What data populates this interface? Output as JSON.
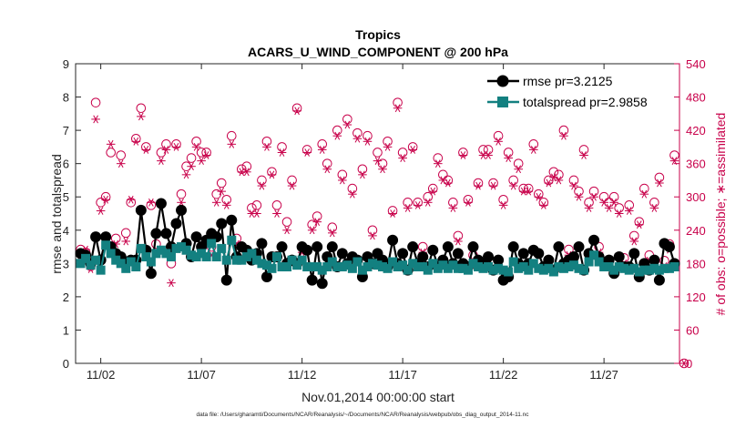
{
  "chart_data": {
    "type": "line",
    "title": "Tropics",
    "subtitle": "ACARS_U_WIND_COMPONENT @ 200 hPa",
    "xlabel": "Nov.01,2014 00:00:00 start",
    "ylabel": "rmse and totalspread",
    "ylabel_right": "# of obs: o=possible; ∗=assimilated",
    "xlim": [
      0.75,
      30.75
    ],
    "ylim": [
      0,
      9
    ],
    "ylim_right": [
      0,
      540
    ],
    "x_ticks": [
      2,
      7,
      12,
      17,
      22,
      27
    ],
    "x_tick_labels": [
      "11/02",
      "11/07",
      "11/12",
      "11/17",
      "11/22",
      "11/27"
    ],
    "y_ticks": [
      0,
      1,
      2,
      3,
      4,
      5,
      6,
      7,
      8,
      9
    ],
    "y_ticks_right": [
      0,
      60,
      120,
      180,
      240,
      300,
      360,
      420,
      480,
      540
    ],
    "grid": false,
    "legend_position": "top-right",
    "x": [
      1.0,
      1.25,
      1.5,
      1.75,
      2.0,
      2.25,
      2.5,
      2.75,
      3.0,
      3.25,
      3.5,
      3.75,
      4.0,
      4.25,
      4.5,
      4.75,
      5.0,
      5.25,
      5.5,
      5.75,
      6.0,
      6.25,
      6.5,
      6.75,
      7.0,
      7.25,
      7.5,
      7.75,
      8.0,
      8.25,
      8.5,
      8.75,
      9.0,
      9.25,
      9.5,
      9.75,
      10.0,
      10.25,
      10.5,
      10.75,
      11.0,
      11.25,
      11.5,
      11.75,
      12.0,
      12.25,
      12.5,
      12.75,
      13.0,
      13.25,
      13.5,
      13.75,
      14.0,
      14.25,
      14.5,
      14.75,
      15.0,
      15.25,
      15.5,
      15.75,
      16.0,
      16.25,
      16.5,
      16.75,
      17.0,
      17.25,
      17.5,
      17.75,
      18.0,
      18.25,
      18.5,
      18.75,
      19.0,
      19.25,
      19.5,
      19.75,
      20.0,
      20.25,
      20.5,
      20.75,
      21.0,
      21.25,
      21.5,
      21.75,
      22.0,
      22.25,
      22.5,
      22.75,
      23.0,
      23.25,
      23.5,
      23.75,
      24.0,
      24.25,
      24.5,
      24.75,
      25.0,
      25.25,
      25.5,
      25.75,
      26.0,
      26.25,
      26.5,
      26.75,
      27.0,
      27.25,
      27.5,
      27.75,
      28.0,
      28.25,
      28.5,
      28.75,
      29.0,
      29.25,
      29.5,
      29.75,
      30.0,
      30.25,
      30.5
    ],
    "series": [
      {
        "name": "rmse pr=3.2125",
        "axis": "left",
        "color": "#000000",
        "marker": "circle",
        "values": [
          3.3,
          3.25,
          3.0,
          3.8,
          3.1,
          3.8,
          3.5,
          3.3,
          3.2,
          3.05,
          3.1,
          3.1,
          4.6,
          3.4,
          2.7,
          3.9,
          4.8,
          3.9,
          3.5,
          4.2,
          4.6,
          3.6,
          3.2,
          3.8,
          3.5,
          3.7,
          3.9,
          3.8,
          4.2,
          2.5,
          4.3,
          3.2,
          3.5,
          3.4,
          3.1,
          3.3,
          3.6,
          2.6,
          3.2,
          3.2,
          3.5,
          3.0,
          3.1,
          3.0,
          3.5,
          3.4,
          2.5,
          3.5,
          2.4,
          3.2,
          3.5,
          2.9,
          3.3,
          3.0,
          3.2,
          3.1,
          2.6,
          3.2,
          3.0,
          3.3,
          3.1,
          2.9,
          3.7,
          3.0,
          3.3,
          2.8,
          3.5,
          3.0,
          3.2,
          2.9,
          3.4,
          2.9,
          3.1,
          3.5,
          3.0,
          3.3,
          3.0,
          2.9,
          3.5,
          3.1,
          3.0,
          3.2,
          2.8,
          3.1,
          2.5,
          2.6,
          3.5,
          3.0,
          3.3,
          3.0,
          3.4,
          3.3,
          2.9,
          3.1,
          2.8,
          3.5,
          3.0,
          3.1,
          3.2,
          3.5,
          2.8,
          3.3,
          3.7,
          3.2,
          3.0,
          3.1,
          2.7,
          3.2,
          2.9,
          2.9,
          3.3,
          2.6,
          3.0,
          2.8,
          3.1,
          2.5,
          3.6,
          3.5,
          3.0
        ]
      },
      {
        "name": "totalspread pr=2.9858",
        "axis": "left",
        "color": "#138080",
        "marker": "square",
        "values": [
          3.0,
          3.15,
          2.95,
          3.1,
          2.8,
          3.55,
          3.3,
          3.1,
          3.0,
          2.85,
          3.05,
          2.9,
          3.45,
          3.2,
          3.05,
          3.3,
          3.4,
          3.3,
          3.2,
          3.45,
          3.5,
          3.4,
          3.25,
          3.2,
          3.3,
          3.2,
          3.6,
          3.2,
          3.45,
          3.1,
          3.7,
          3.1,
          3.1,
          3.2,
          3.3,
          3.1,
          3.0,
          2.95,
          2.85,
          3.2,
          2.9,
          2.9,
          3.1,
          2.95,
          3.1,
          2.9,
          2.9,
          2.9,
          2.8,
          2.9,
          3.05,
          2.9,
          2.9,
          2.95,
          2.85,
          3.05,
          2.8,
          2.9,
          3.0,
          2.95,
          2.9,
          2.85,
          3.05,
          2.9,
          2.95,
          2.8,
          3.0,
          2.9,
          2.9,
          2.8,
          3.0,
          2.85,
          2.95,
          2.85,
          2.95,
          2.85,
          2.85,
          2.8,
          3.0,
          2.9,
          2.85,
          2.9,
          2.8,
          2.85,
          2.8,
          2.75,
          3.05,
          2.85,
          2.9,
          2.8,
          3.0,
          2.85,
          2.8,
          2.85,
          2.75,
          2.9,
          2.85,
          2.9,
          2.95,
          2.85,
          2.8,
          3.05,
          3.25,
          3.05,
          2.9,
          2.9,
          2.8,
          2.9,
          2.85,
          2.8,
          2.85,
          2.75,
          2.8,
          2.8,
          2.85,
          2.8,
          2.85,
          2.85,
          2.9
        ]
      },
      {
        "name": "# of obs possible",
        "axis": "right",
        "color": "#c8004a",
        "marker": "open-circle",
        "values": [
          205,
          200,
          175,
          470,
          290,
          300,
          380,
          225,
          375,
          235,
          290,
          405,
          460,
          390,
          285,
          215,
          380,
          395,
          180,
          395,
          305,
          355,
          370,
          400,
          380,
          380,
          210,
          305,
          325,
          295,
          410,
          225,
          350,
          355,
          280,
          285,
          330,
          400,
          345,
          285,
          390,
          255,
          330,
          460,
          210,
          385,
          250,
          265,
          395,
          360,
          245,
          420,
          340,
          440,
          315,
          415,
          350,
          410,
          240,
          380,
          360,
          400,
          275,
          470,
          380,
          290,
          390,
          290,
          210,
          300,
          315,
          370,
          340,
          330,
          290,
          230,
          380,
          295,
          195,
          325,
          385,
          385,
          325,
          410,
          295,
          380,
          330,
          360,
          315,
          315,
          395,
          305,
          290,
          330,
          345,
          340,
          420,
          205,
          330,
          310,
          385,
          290,
          310,
          210,
          300,
          290,
          300,
          280,
          190,
          285,
          230,
          255,
          315,
          195,
          290,
          335,
          185,
          215,
          375
        ]
      },
      {
        "name": "# of obs assimilated",
        "axis": "right",
        "color": "#c8004a",
        "marker": "asterisk",
        "values": [
          195,
          205,
          170,
          440,
          275,
          295,
          395,
          215,
          360,
          220,
          295,
          400,
          445,
          385,
          290,
          200,
          365,
          385,
          145,
          390,
          290,
          340,
          355,
          390,
          365,
          375,
          195,
          290,
          310,
          285,
          395,
          215,
          345,
          345,
          270,
          270,
          320,
          390,
          340,
          270,
          380,
          240,
          320,
          455,
          200,
          380,
          240,
          255,
          385,
          350,
          235,
          410,
          330,
          430,
          305,
          405,
          340,
          400,
          230,
          365,
          350,
          390,
          270,
          460,
          370,
          280,
          385,
          285,
          200,
          290,
          310,
          360,
          330,
          325,
          280,
          220,
          375,
          290,
          185,
          320,
          375,
          375,
          320,
          400,
          285,
          370,
          320,
          350,
          310,
          310,
          385,
          300,
          285,
          325,
          335,
          330,
          410,
          195,
          320,
          300,
          375,
          280,
          300,
          200,
          290,
          280,
          290,
          270,
          180,
          275,
          220,
          250,
          305,
          185,
          280,
          325,
          175,
          205,
          365
        ]
      }
    ],
    "extra_points_right": [
      {
        "x": 31.0,
        "possible": 0,
        "assimilated": 0
      }
    ]
  },
  "footnote": "data file: /Users/gharamti/Documents/NCAR/Reanalysis/~/Documents/NCAR/Reanalysis/webpub/obs_diag_output_2014-11.nc",
  "colors": {
    "rmse": "#000000",
    "spread": "#138080",
    "obs": "#c8004a"
  }
}
